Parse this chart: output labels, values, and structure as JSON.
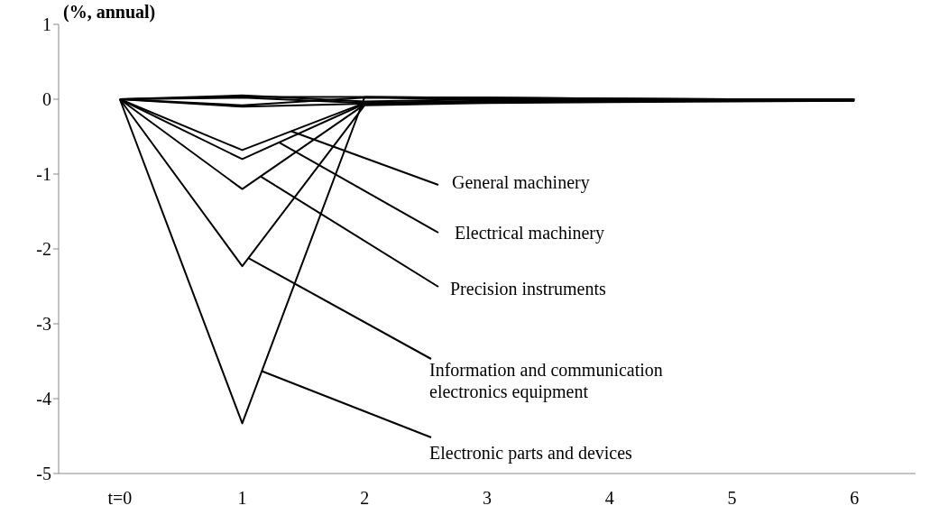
{
  "chart_data": {
    "type": "line",
    "ylabel": "(%, annual)",
    "categories": [
      "t=0",
      "1",
      "2",
      "3",
      "4",
      "5",
      "6"
    ],
    "ylim": [
      -5,
      1
    ],
    "yticks": [
      -5,
      -4,
      -3,
      -2,
      -1,
      0,
      1
    ],
    "grid": false,
    "legend": false,
    "marker": "none",
    "line_style": "solid",
    "series": [
      {
        "name": "General machinery",
        "color": "#000000",
        "values": [
          0,
          -0.68,
          -0.05,
          -0.03,
          -0.02,
          -0.02,
          -0.01
        ]
      },
      {
        "name": "Electrical machinery",
        "color": "#000000",
        "values": [
          0,
          -0.8,
          -0.06,
          -0.03,
          -0.02,
          -0.02,
          -0.01
        ]
      },
      {
        "name": "Precision instruments",
        "color": "#000000",
        "values": [
          0,
          -1.2,
          -0.07,
          -0.04,
          -0.03,
          -0.02,
          -0.02
        ]
      },
      {
        "name": "Information and communication electronics equipment",
        "color": "#000000",
        "values": [
          0,
          -2.23,
          -0.08,
          -0.05,
          -0.04,
          -0.03,
          -0.02
        ]
      },
      {
        "name": "Electronic parts and devices",
        "color": "#000000",
        "values": [
          0,
          -4.33,
          0.03,
          0.02,
          0.01,
          0,
          0
        ]
      },
      {
        "color": "#000000",
        "values": [
          0,
          0.05,
          -0.03,
          0,
          0,
          0,
          0
        ]
      },
      {
        "color": "#000000",
        "values": [
          0,
          -0.08,
          0.02,
          0,
          0,
          0,
          0
        ]
      },
      {
        "color": "#000000",
        "values": [
          0,
          0.02,
          -0.05,
          -0.02,
          -0.02,
          -0.01,
          -0.01
        ]
      },
      {
        "color": "#000000",
        "values": [
          0,
          -0.1,
          -0.06,
          -0.03,
          -0.02,
          -0.01,
          -0.01
        ]
      },
      {
        "color": "#000000",
        "values": [
          0,
          0.03,
          0.03,
          0.02,
          0.01,
          0,
          0
        ]
      }
    ]
  }
}
